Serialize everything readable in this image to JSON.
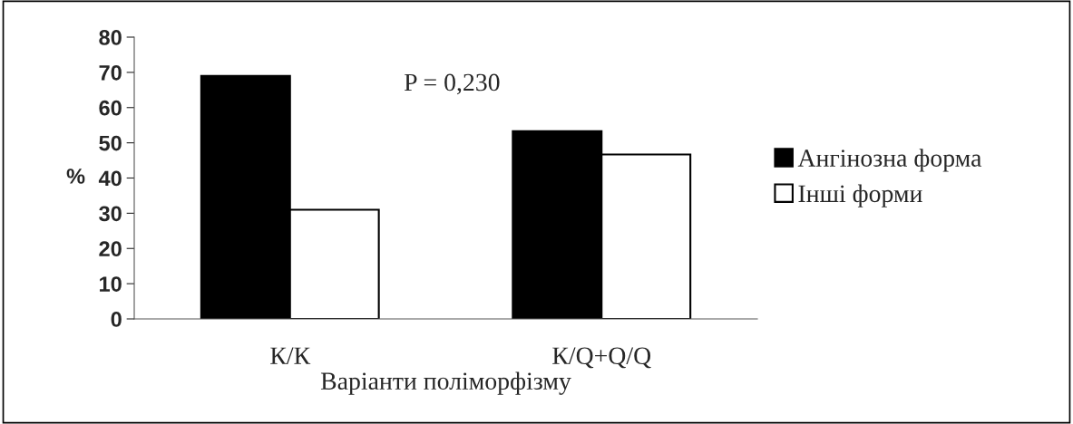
{
  "chart_data": {
    "type": "bar",
    "categories": [
      "К/К",
      "К/Q+Q/Q"
    ],
    "series": [
      {
        "name": "Ангінозна форма",
        "color": "#000000",
        "values": [
          69,
          53.3
        ]
      },
      {
        "name": "Інші форми",
        "color": "#ffffff",
        "values": [
          31,
          46.7
        ]
      }
    ],
    "xlabel": "Варіанти поліморфізму",
    "ylabel": "%",
    "ylim": [
      0,
      80
    ],
    "yticks": [
      0,
      10,
      20,
      30,
      40,
      50,
      60,
      70,
      80
    ],
    "annotations": [
      "P = 0,230"
    ],
    "legend": "right",
    "grid": false
  }
}
